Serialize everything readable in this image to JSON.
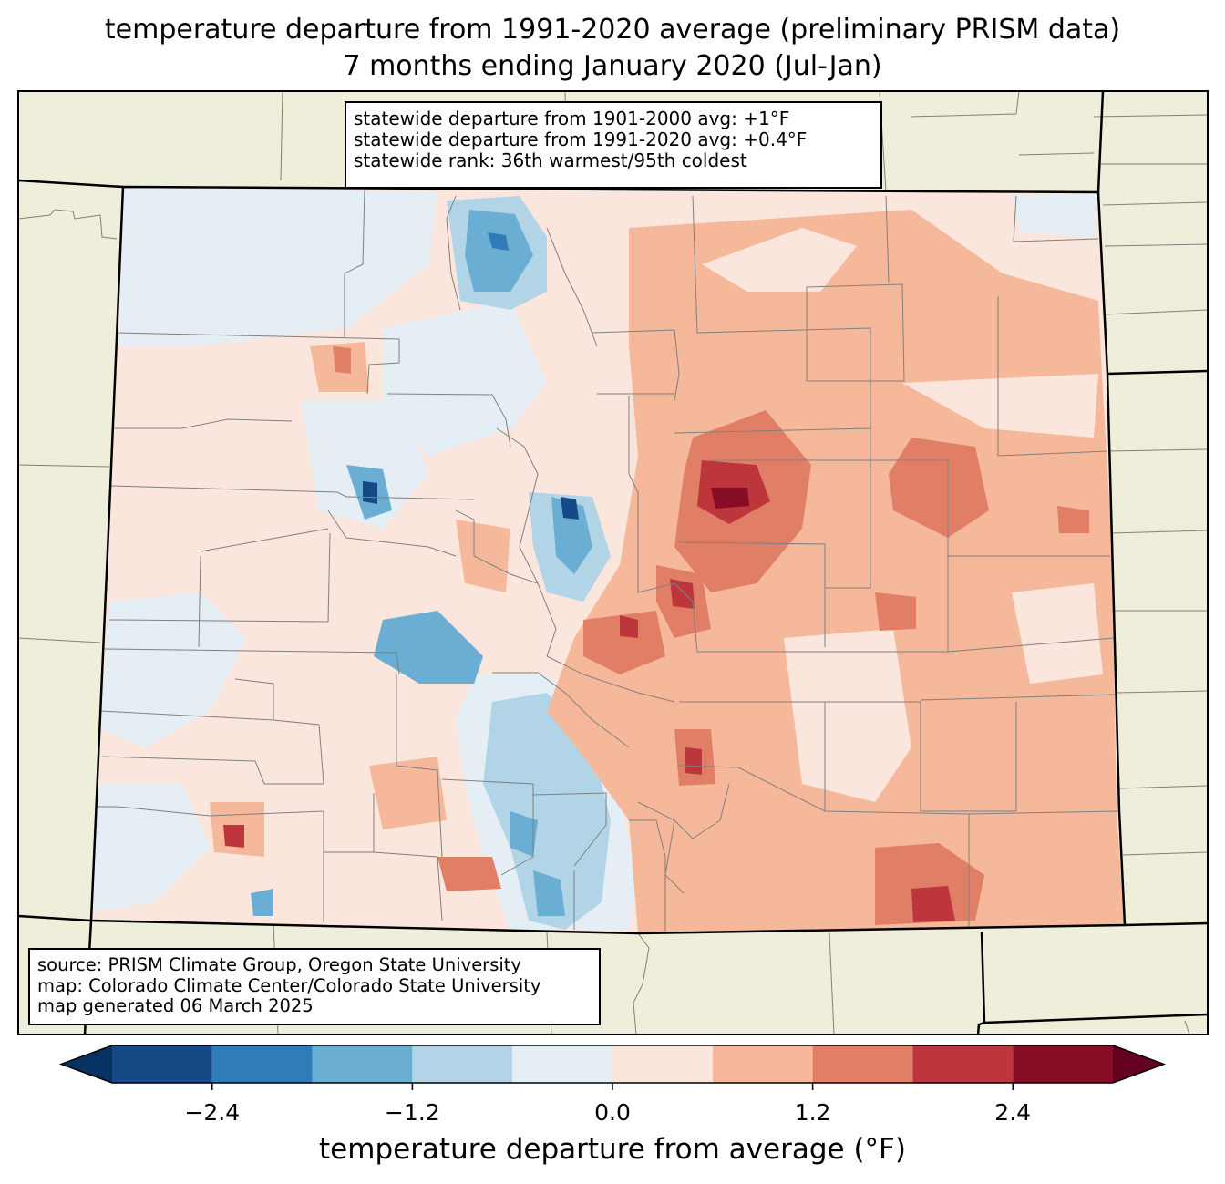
{
  "title": {
    "line1": "temperature departure from 1991-2020 average (preliminary PRISM data)",
    "line2": "7 months ending January 2020 (Jul-Jan)"
  },
  "stats_box": {
    "line1": "statewide departure from 1901-2000 avg: +1°F",
    "line2": "statewide departure from 1991-2020 avg: +0.4°F",
    "line3": "statewide rank: 36th warmest/95th coldest"
  },
  "source_box": {
    "line1": "source: PRISM Climate Group, Oregon State University",
    "line2": "map: Colorado Climate Center/Colorado State University",
    "line3": "map generated 06 March 2025"
  },
  "colorbar": {
    "label": "temperature departure from average (°F)",
    "ticks": [
      "−2.4",
      "−1.2",
      "0.0",
      "1.2",
      "2.4"
    ],
    "tick_values": [
      -2.4,
      -1.2,
      0.0,
      1.2,
      2.4
    ],
    "min": -3.0,
    "max": 3.0,
    "bins": [
      {
        "from": -3.0,
        "to": -2.4,
        "color": "#154a86"
      },
      {
        "from": -2.4,
        "to": -1.8,
        "color": "#2f7cb8"
      },
      {
        "from": -1.8,
        "to": -1.2,
        "color": "#6aaed3"
      },
      {
        "from": -1.2,
        "to": -0.6,
        "color": "#b1d5e7"
      },
      {
        "from": -0.6,
        "to": 0.0,
        "color": "#e5eef5"
      },
      {
        "from": 0.0,
        "to": 0.6,
        "color": "#fae6dc"
      },
      {
        "from": 0.6,
        "to": 1.2,
        "color": "#f5b89b"
      },
      {
        "from": 1.2,
        "to": 1.8,
        "color": "#e07f66"
      },
      {
        "from": 1.8,
        "to": 2.4,
        "color": "#bc363c"
      },
      {
        "from": 2.4,
        "to": 3.0,
        "color": "#870c25"
      }
    ],
    "under_color": "#083262",
    "over_color": "#660020"
  },
  "map_colors": {
    "land": "#efeeda",
    "state_border": "#000000",
    "county_border": "#808080"
  }
}
